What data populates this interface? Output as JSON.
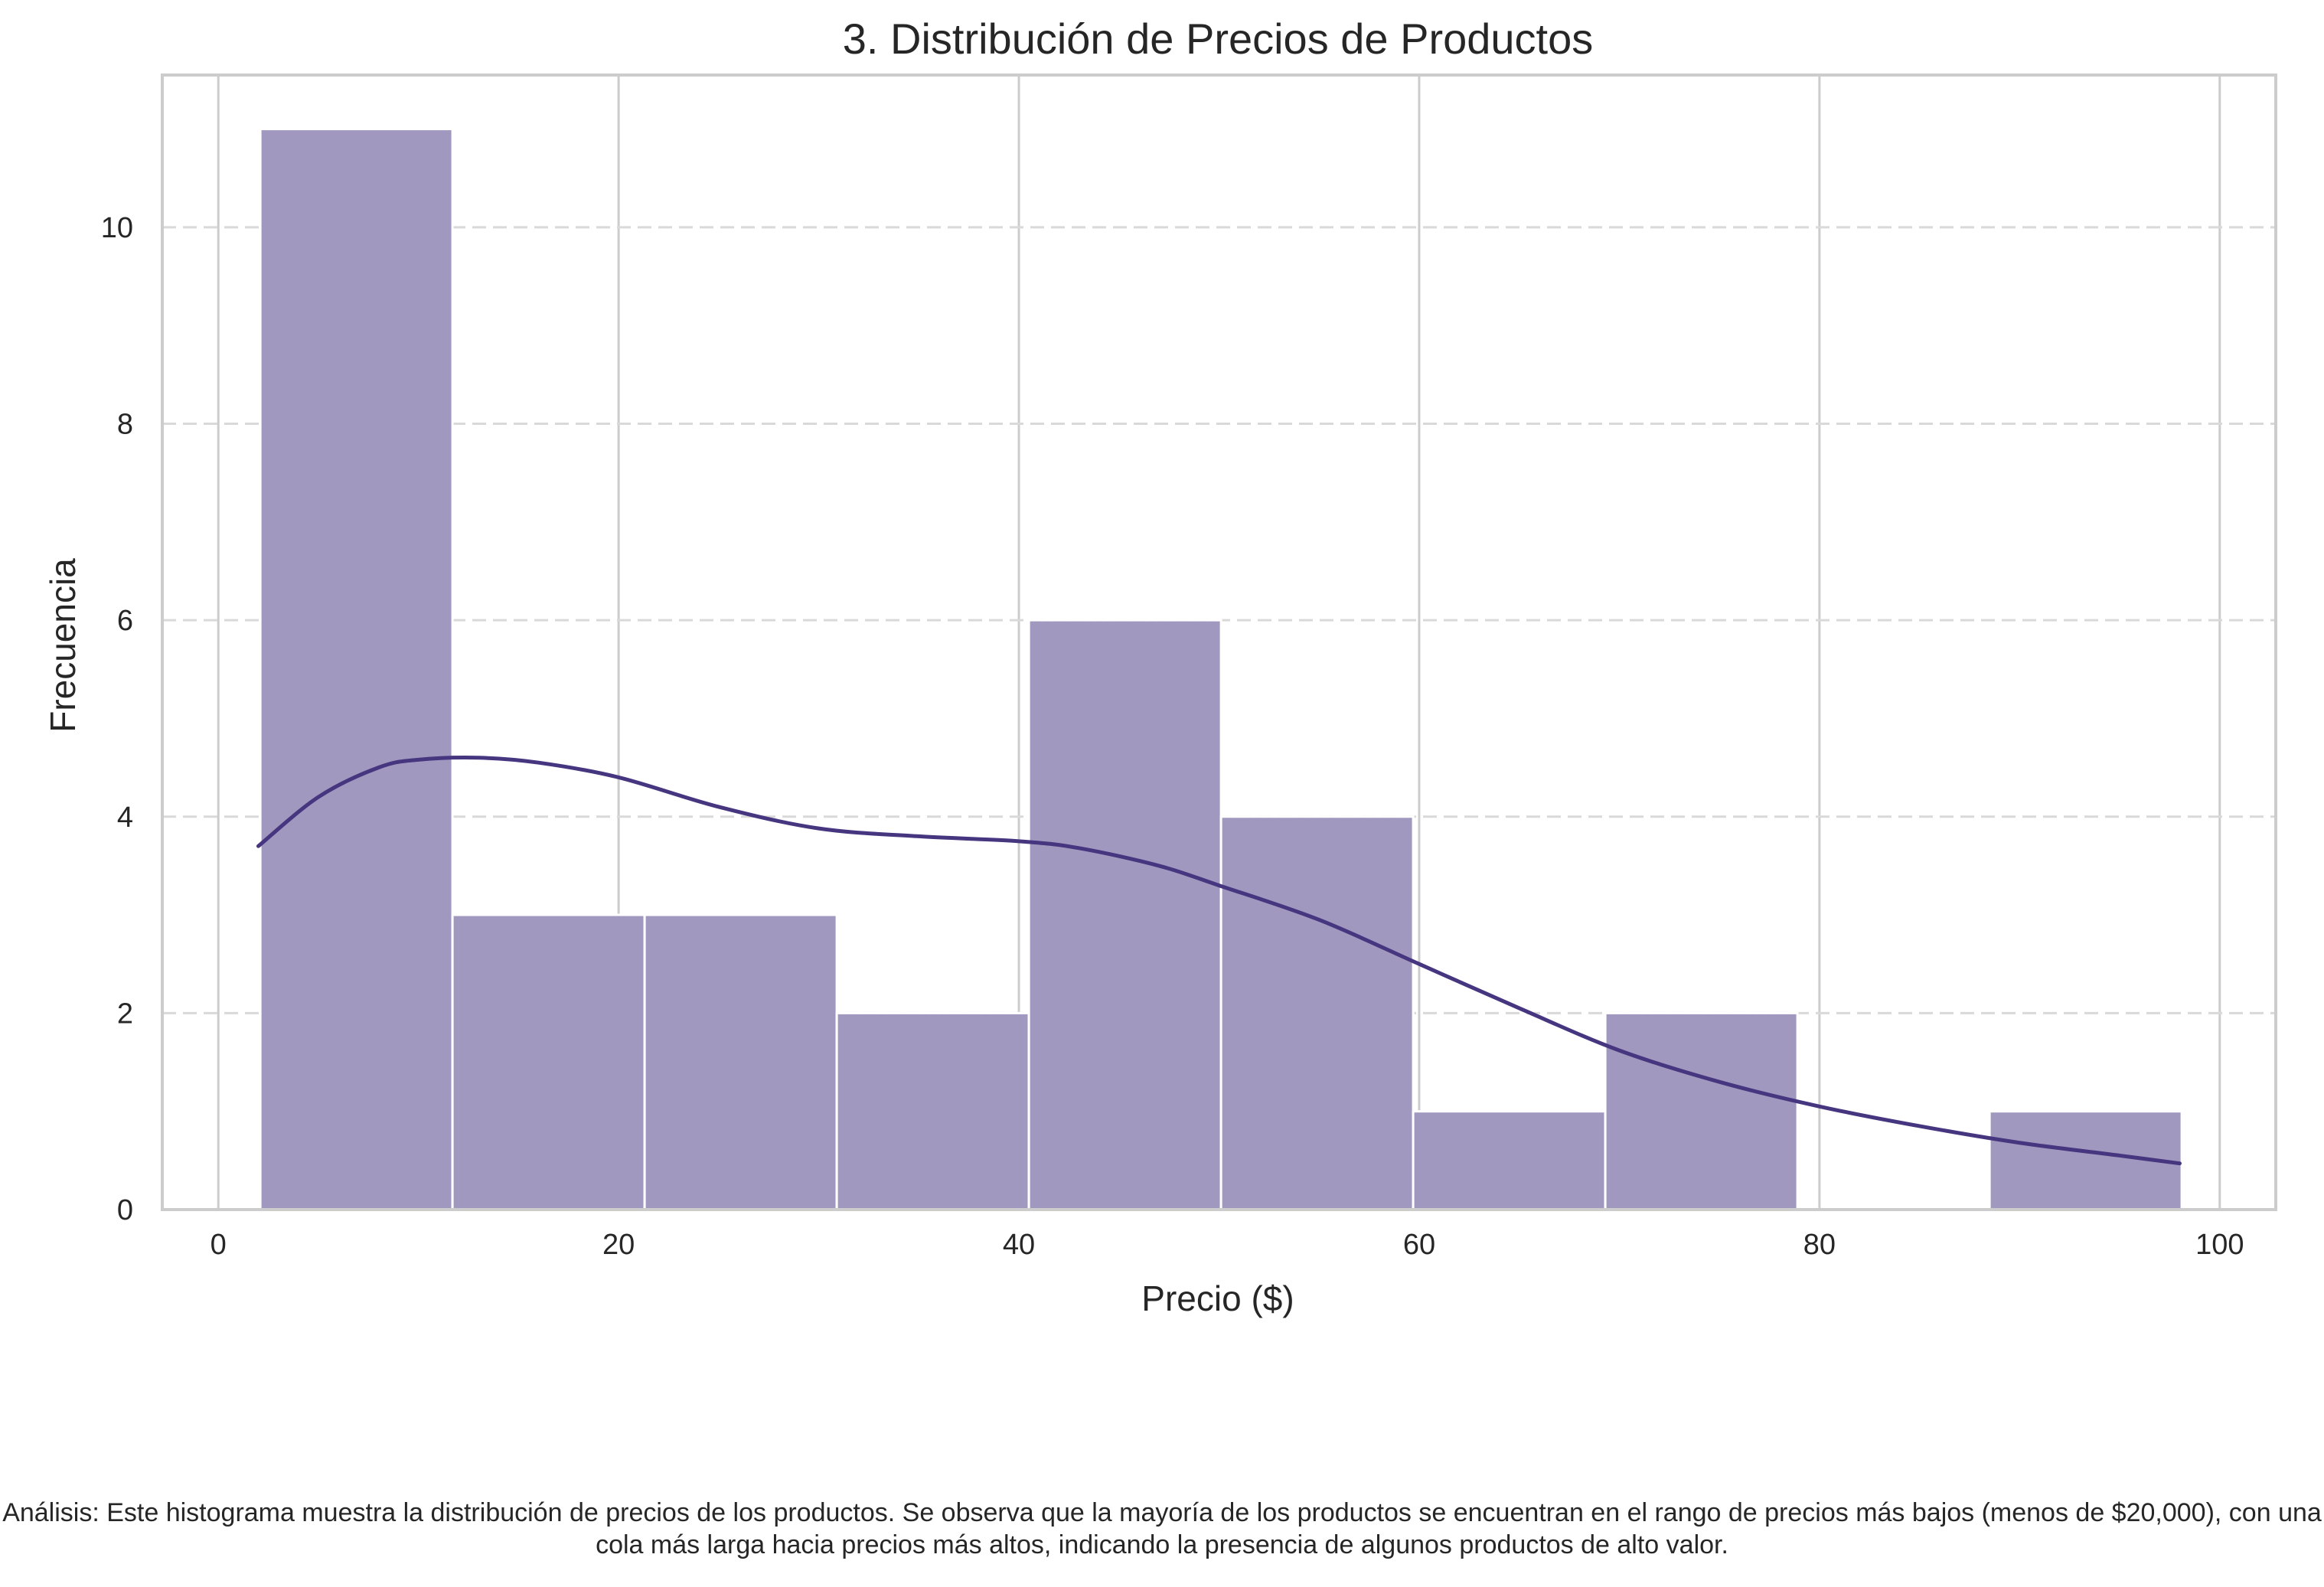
{
  "chart_data": {
    "type": "bar",
    "title": "3. Distribución de Precios de Productos",
    "xlabel": "Precio ($)",
    "ylabel": "Frecuencia",
    "xlim": [
      -2.8,
      102.8
    ],
    "ylim": [
      0,
      11.55
    ],
    "xticks": [
      "0",
      "20",
      "40",
      "60",
      "80",
      "100"
    ],
    "yticks": [
      "0",
      "2",
      "4",
      "6",
      "8",
      "10"
    ],
    "bins": [
      {
        "x0": 2.1,
        "x1": 11.7,
        "count": 11
      },
      {
        "x0": 11.7,
        "x1": 21.3,
        "count": 3
      },
      {
        "x0": 21.3,
        "x1": 30.9,
        "count": 3
      },
      {
        "x0": 30.9,
        "x1": 40.5,
        "count": 2
      },
      {
        "x0": 40.5,
        "x1": 50.1,
        "count": 6
      },
      {
        "x0": 50.1,
        "x1": 59.7,
        "count": 4
      },
      {
        "x0": 59.7,
        "x1": 69.3,
        "count": 1
      },
      {
        "x0": 69.3,
        "x1": 78.9,
        "count": 2
      },
      {
        "x0": 78.9,
        "x1": 88.5,
        "count": 0
      },
      {
        "x0": 88.5,
        "x1": 98.1,
        "count": 1
      }
    ],
    "kde": {
      "x": [
        2,
        5,
        8,
        10,
        13,
        16,
        20,
        25,
        30,
        35,
        40,
        43,
        47,
        50,
        55,
        60,
        65,
        70,
        75,
        80,
        85,
        90,
        95,
        98
      ],
      "y": [
        3.7,
        4.2,
        4.5,
        4.58,
        4.6,
        4.55,
        4.4,
        4.1,
        3.88,
        3.8,
        3.75,
        3.68,
        3.5,
        3.3,
        2.95,
        2.5,
        2.05,
        1.62,
        1.3,
        1.05,
        0.85,
        0.68,
        0.55,
        0.47
      ]
    },
    "grid": true,
    "colors": {
      "bar": "#a198bf",
      "bar_edge": "#ffffff",
      "kde": "#46357f",
      "grid_vertical": "#cccccc",
      "grid_horizontal": "#d9d9d9",
      "spine": "#cccccc"
    }
  },
  "analysis": "Análisis: Este histograma muestra la distribución de precios de los productos. Se observa que la mayoría de los productos se encuentran en el rango de precios más bajos (menos de $20,000), con una cola más larga hacia precios más altos, indicando la presencia de algunos productos de alto valor."
}
